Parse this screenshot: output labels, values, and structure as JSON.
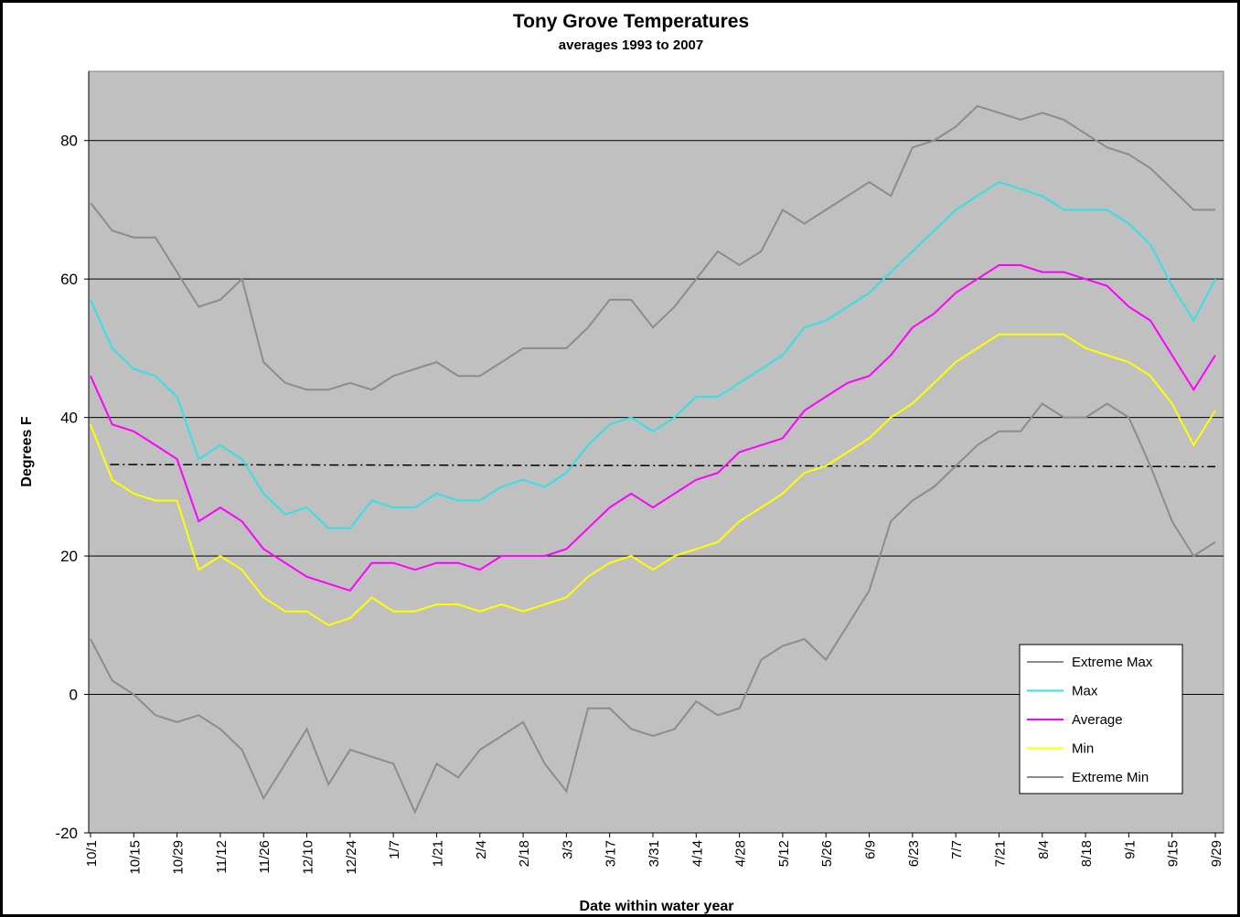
{
  "chart_data": {
    "type": "line",
    "title": "Tony Grove Temperatures",
    "subtitle": "averages 1993 to 2007",
    "y_label": "Degrees F",
    "x_label": "Date within water year",
    "categories": [
      "10/1",
      null,
      "10/15",
      null,
      "10/29",
      null,
      "11/12",
      null,
      "11/26",
      null,
      "12/10",
      null,
      "12/24",
      null,
      "1/7",
      null,
      "1/21",
      null,
      "2/4",
      null,
      "2/18",
      null,
      "3/3",
      null,
      "3/17",
      null,
      "3/31",
      null,
      "4/14",
      null,
      "4/28",
      null,
      "5/12",
      null,
      "5/26",
      null,
      "6/9",
      null,
      "6/23",
      null,
      "7/7",
      null,
      "7/21",
      null,
      "8/4",
      null,
      "8/18",
      null,
      "9/1",
      null,
      "9/15",
      null,
      "9/29"
    ],
    "series": [
      {
        "name": "Extreme Max",
        "color": "#8c8c8c",
        "values": [
          71,
          67,
          66,
          66,
          61,
          56,
          57,
          60,
          48,
          45,
          44,
          44,
          45,
          44,
          46,
          47,
          48,
          46,
          46,
          48,
          50,
          50,
          50,
          53,
          57,
          57,
          53,
          56,
          60,
          64,
          62,
          64,
          70,
          68,
          70,
          72,
          74,
          72,
          79,
          80,
          82,
          85,
          84,
          83,
          84,
          83,
          81,
          79,
          78,
          76,
          73,
          70,
          70
        ]
      },
      {
        "name": "Max",
        "color": "#33e0e8",
        "values": [
          57,
          50,
          47,
          46,
          43,
          34,
          36,
          34,
          29,
          26,
          27,
          24,
          24,
          28,
          27,
          27,
          29,
          28,
          28,
          30,
          31,
          30,
          32,
          36,
          39,
          40,
          38,
          40,
          43,
          43,
          45,
          47,
          49,
          53,
          54,
          56,
          58,
          61,
          64,
          67,
          70,
          72,
          74,
          73,
          72,
          70,
          70,
          70,
          68,
          65,
          59,
          54,
          60
        ]
      },
      {
        "name": "Average",
        "color": "#ff00ff",
        "values": [
          46,
          39,
          38,
          36,
          34,
          25,
          27,
          25,
          21,
          19,
          17,
          16,
          15,
          19,
          19,
          18,
          19,
          19,
          18,
          20,
          20,
          20,
          21,
          24,
          27,
          29,
          27,
          29,
          31,
          32,
          35,
          36,
          37,
          41,
          43,
          45,
          46,
          49,
          53,
          55,
          58,
          60,
          62,
          62,
          61,
          61,
          60,
          59,
          56,
          54,
          49,
          44,
          49
        ]
      },
      {
        "name": "Min",
        "color": "#ffff00",
        "values": [
          39,
          31,
          29,
          28,
          28,
          18,
          20,
          18,
          14,
          12,
          12,
          10,
          11,
          14,
          12,
          12,
          13,
          13,
          12,
          13,
          12,
          13,
          14,
          17,
          19,
          20,
          18,
          20,
          21,
          22,
          25,
          27,
          29,
          32,
          33,
          35,
          37,
          40,
          42,
          45,
          48,
          50,
          52,
          52,
          52,
          52,
          50,
          49,
          48,
          46,
          42,
          36,
          41
        ]
      },
      {
        "name": "Extreme Min",
        "color": "#8c8c8c",
        "values": [
          8,
          2,
          0,
          -3,
          -4,
          -3,
          -5,
          -8,
          -15,
          -10,
          -5,
          -13,
          -8,
          -9,
          -10,
          -17,
          -10,
          -12,
          -8,
          -6,
          -4,
          -10,
          -14,
          -2,
          -2,
          -5,
          -6,
          -5,
          -1,
          -3,
          -2,
          5,
          7,
          8,
          5,
          10,
          15,
          25,
          28,
          30,
          33,
          36,
          38,
          38,
          42,
          40,
          40,
          42,
          40,
          33,
          25,
          20,
          22
        ]
      }
    ],
    "reference_line": {
      "values": [
        33.2,
        32.9
      ],
      "color": "#000000"
    },
    "ylim": [
      -20,
      90
    ],
    "yticks": [
      -20,
      0,
      20,
      40,
      60,
      80
    ],
    "grid": true,
    "plot_background": "#c0c0c0",
    "legend": "lower right"
  }
}
